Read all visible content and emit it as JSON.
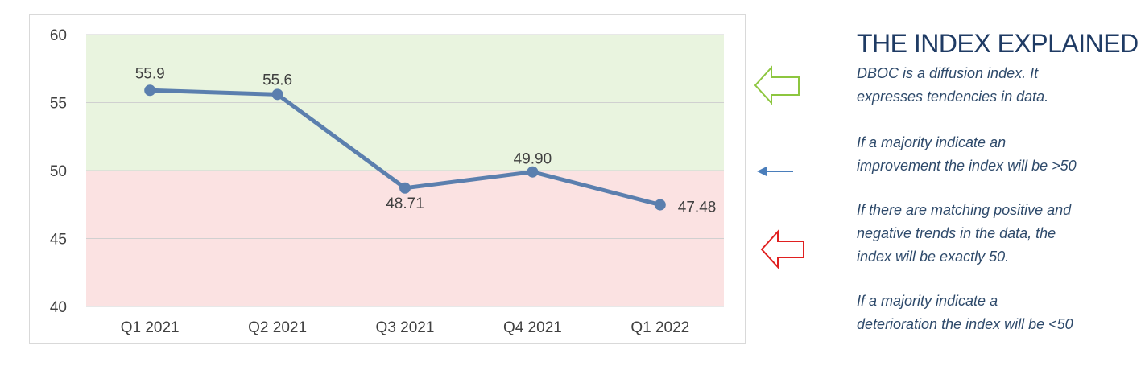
{
  "chart_data": {
    "type": "line",
    "categories": [
      "Q1 2021",
      "Q2 2021",
      "Q3 2021",
      "Q4 2021",
      "Q1 2022"
    ],
    "values": [
      55.9,
      55.6,
      48.71,
      49.9,
      47.48
    ],
    "data_labels": [
      "55.9",
      "55.6",
      "48.71",
      "49.90",
      "47.48"
    ],
    "y_ticks": [
      "40",
      "45",
      "50",
      "55",
      "60"
    ],
    "ylim": [
      40,
      60
    ],
    "grid": true,
    "bands": [
      {
        "from": 50,
        "to": 60,
        "color": "#e9f4df"
      },
      {
        "from": 40,
        "to": 50,
        "color": "#fbe2e2"
      }
    ],
    "line_color": "#5b7fae",
    "marker_color": "#5b7fae"
  },
  "indicators": {
    "up_color": "#8dc63f",
    "neutral_color": "#4a7ebb",
    "down_color": "#e02020"
  },
  "explainer": {
    "title": "THE INDEX EXPLAINED",
    "paragraphs": [
      [
        "DBOC is a diffusion index. It",
        "expresses tendencies in data."
      ],
      [
        "If a majority indicate an",
        "improvement the index will be >50"
      ],
      [
        "If there are matching positive and",
        "negative trends in the data, the",
        "index will be exactly 50."
      ],
      [
        "If a majority indicate a",
        "deterioration the index will be <50"
      ]
    ]
  }
}
